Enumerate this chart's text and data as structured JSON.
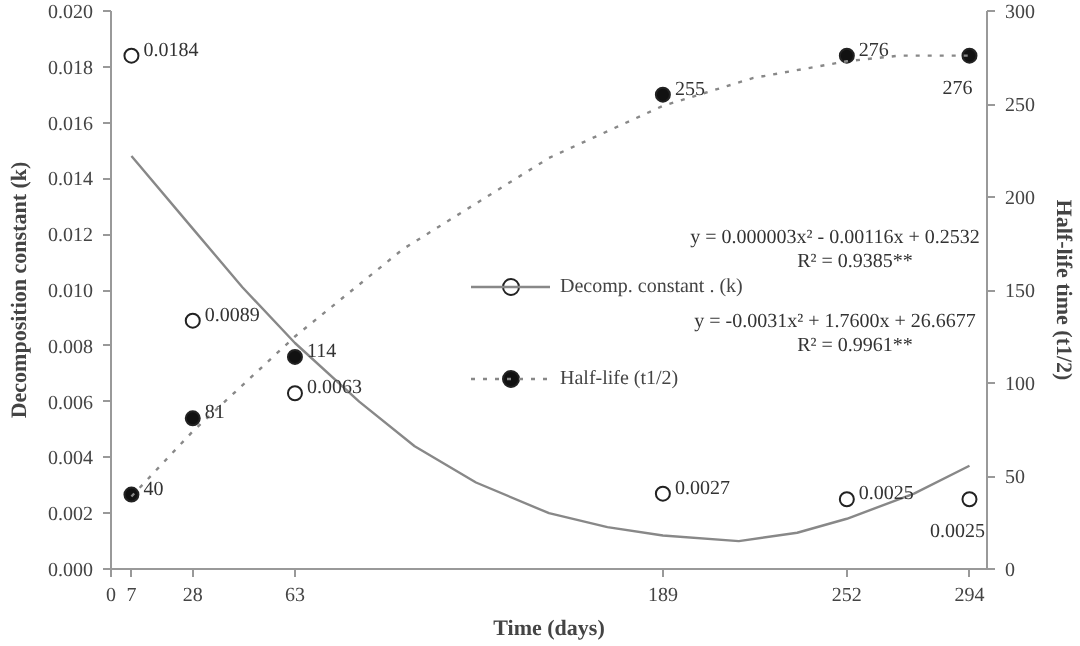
{
  "chart_data": {
    "type": "scatter",
    "xlabel": "Time (days)",
    "ylabel": "Decomposition constant (k)",
    "y2label": "Half-life time (t1/2)",
    "xlim": [
      0,
      300
    ],
    "xticks": [
      0,
      7,
      28,
      63,
      189,
      252,
      294
    ],
    "ylim": [
      0,
      0.02
    ],
    "yticks": [
      {
        "value": 0,
        "label": "0.000"
      },
      {
        "value": 0.002,
        "label": "0.002"
      },
      {
        "value": 0.004,
        "label": "0.004"
      },
      {
        "value": 0.006,
        "label": "0.006"
      },
      {
        "value": 0.008,
        "label": "0.008"
      },
      {
        "value": 0.01,
        "label": "0.010"
      },
      {
        "value": 0.012,
        "label": "0.012"
      },
      {
        "value": 0.014,
        "label": "0.014"
      },
      {
        "value": 0.016,
        "label": "0.016"
      },
      {
        "value": 0.018,
        "label": "0.018"
      },
      {
        "value": 0.02,
        "label": "0.020"
      }
    ],
    "y2lim": [
      0,
      300
    ],
    "y2ticks": [
      0,
      50,
      100,
      150,
      200,
      250,
      300
    ],
    "grid": false,
    "legend": "center",
    "series": [
      {
        "name": "Decomp. constant . (k)",
        "marker": "circle",
        "color": "#ffffff",
        "x": [
          7,
          28,
          63,
          189,
          252,
          294
        ],
        "values": [
          0.0184,
          0.0089,
          0.0063,
          0.0027,
          0.0025,
          0.0025
        ],
        "value_labels": [
          "0.0184",
          "0.0089",
          "0.0063",
          "0.0027",
          "0.0025",
          "0.0025"
        ]
      },
      {
        "name": "Half-life (t1/2)",
        "marker": "circle",
        "axis": "y2",
        "color": "#111111",
        "x": [
          7,
          28,
          63,
          189,
          252,
          294
        ],
        "values": [
          40,
          81,
          114,
          255,
          276,
          276
        ],
        "value_labels": [
          "40",
          "81",
          "114",
          "255",
          "276",
          "276"
        ]
      },
      {
        "type": "line",
        "color": "#888888",
        "line_style": "solid",
        "x": [
          7,
          28,
          45,
          63,
          85,
          104,
          125,
          150,
          170,
          189,
          215,
          235,
          252,
          275,
          294
        ],
        "values": [
          0.0148,
          0.0122,
          0.0101,
          0.0081,
          0.006,
          0.0044,
          0.0031,
          0.002,
          0.0015,
          0.0012,
          0.001,
          0.0013,
          0.0018,
          0.0027,
          0.0037
        ]
      },
      {
        "type": "line",
        "axis": "y2",
        "color": "#888888",
        "line_style": "dotted",
        "x": [
          7,
          28,
          63,
          100,
          150,
          189,
          220,
          252,
          270,
          294
        ],
        "values": [
          39,
          74,
          125,
          172,
          221,
          249,
          264,
          273,
          276,
          276
        ]
      }
    ],
    "annotations": [
      "y = 0.000003x² - 0.00116x + 0.2532",
      "R² = 0.9385**",
      "y = -0.0031x² + 1.7600x + 26.6677",
      "R² = 0.9961**"
    ]
  }
}
